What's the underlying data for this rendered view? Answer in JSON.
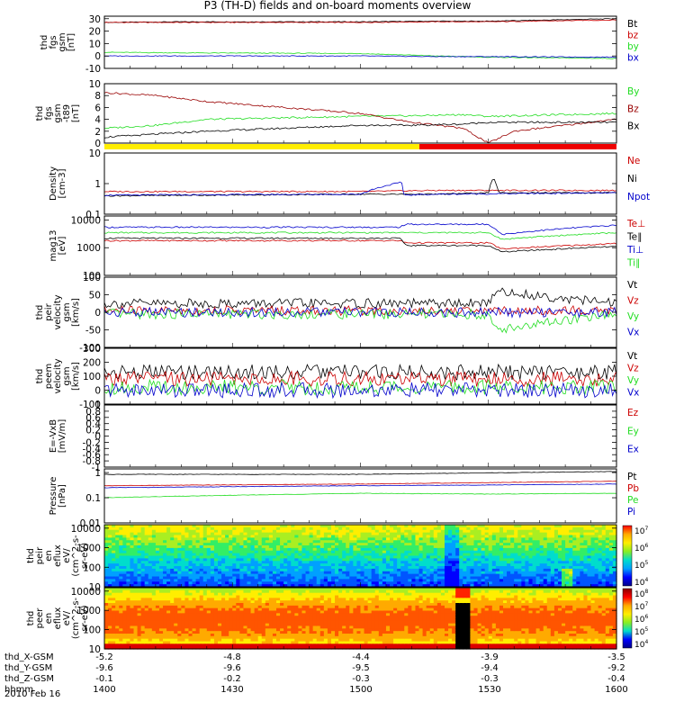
{
  "title": "P3 (TH-D) fields and on-board moments overview",
  "date_label": "2010 Feb 16",
  "colors": {
    "black": "#000000",
    "red": "#cc0000",
    "darkred": "#990000",
    "green": "#22dd22",
    "blue": "#0000cc"
  },
  "chart_data": [
    {
      "type": "line",
      "panel": "fgs_gsm",
      "ylabel": [
        "thd",
        "fgs",
        "gsm",
        "[nT]"
      ],
      "ylim": [
        -10,
        32
      ],
      "yticks": [
        -10,
        0,
        10,
        20,
        30
      ],
      "series": [
        {
          "name": "Bt",
          "color": "#000000",
          "x": [
            1400,
            1430,
            1500,
            1530,
            1550,
            1600
          ],
          "y": [
            27,
            27.5,
            27.5,
            28,
            28,
            30
          ]
        },
        {
          "name": "bz",
          "color": "#cc0000",
          "x": [
            1400,
            1430,
            1500,
            1530,
            1550,
            1600
          ],
          "y": [
            27,
            27,
            27,
            27.5,
            27.5,
            29
          ]
        },
        {
          "name": "by",
          "color": "#22dd22",
          "x": [
            1400,
            1430,
            1500,
            1530,
            1550,
            1600
          ],
          "y": [
            3,
            2.5,
            2,
            0,
            -1,
            -2
          ]
        },
        {
          "name": "bx",
          "color": "#0000cc",
          "x": [
            1400,
            1430,
            1500,
            1530,
            1550,
            1600
          ],
          "y": [
            0,
            0,
            0,
            -0.5,
            -0.5,
            -1
          ]
        }
      ]
    },
    {
      "type": "line",
      "panel": "fgs_t89",
      "ylabel": [
        "thd",
        "fgs",
        "gsm",
        "-t89",
        "[nT]"
      ],
      "ylim": [
        0,
        10
      ],
      "yticks": [
        0,
        2,
        4,
        6,
        8,
        10
      ],
      "series": [
        {
          "name": "By",
          "color": "#22dd22",
          "x": [
            1400,
            1420,
            1440,
            1500,
            1520,
            1540,
            1550,
            1600
          ],
          "y": [
            2.5,
            3,
            4,
            4.5,
            4.6,
            4.8,
            4.5,
            5
          ]
        },
        {
          "name": "Bz",
          "color": "#990000",
          "x": [
            1400,
            1420,
            1440,
            1500,
            1520,
            1540,
            1550,
            1560,
            1600
          ],
          "y": [
            8.5,
            8,
            7,
            5,
            3.5,
            2.5,
            0,
            2,
            4
          ]
        },
        {
          "name": "Bx",
          "color": "#000000",
          "x": [
            1400,
            1420,
            1440,
            1500,
            1520,
            1540,
            1550,
            1600
          ],
          "y": [
            1,
            1.5,
            2,
            3,
            3,
            3.2,
            3.5,
            3.5
          ]
        }
      ]
    },
    {
      "type": "bar",
      "panel": "state_bar",
      "segments": [
        {
          "from": 1400,
          "to": 1523,
          "color": "#ffee00"
        },
        {
          "from": 1523,
          "to": 1600,
          "color": "#ee0000"
        }
      ]
    },
    {
      "type": "line",
      "panel": "density",
      "yscale": "log",
      "ylabel": [
        "Density",
        "[cm-3]"
      ],
      "ylim": [
        0.1,
        10
      ],
      "yticks": [
        0.1,
        1.0,
        10.0
      ],
      "series": [
        {
          "name": "Ne",
          "color": "#cc0000",
          "x": [
            1400,
            1500,
            1530,
            1550,
            1600
          ],
          "y": [
            0.55,
            0.55,
            0.6,
            0.6,
            0.6
          ]
        },
        {
          "name": "Ni",
          "color": "#000000",
          "x": [
            1400,
            1500,
            1530,
            1550,
            1552,
            1554,
            1600
          ],
          "y": [
            0.4,
            0.45,
            0.45,
            0.5,
            1.5,
            0.5,
            0.5
          ]
        },
        {
          "name": "Npot",
          "color": "#0000cc",
          "x": [
            1400,
            1500,
            1516,
            1517,
            1530,
            1600
          ],
          "y": [
            0.42,
            0.45,
            1.1,
            0.42,
            0.45,
            0.5
          ]
        }
      ]
    },
    {
      "type": "line",
      "panel": "temperature",
      "yscale": "log",
      "ylabel": [
        "mag13",
        "[eV]"
      ],
      "ylim": [
        100,
        14000
      ],
      "yticks": [
        100,
        1000,
        10000
      ],
      "series": [
        {
          "name": "Te⊥",
          "color": "#cc0000",
          "x": [
            1400,
            1515,
            1518,
            1550,
            1555,
            1600
          ],
          "y": [
            1800,
            1800,
            1500,
            1500,
            900,
            1400
          ]
        },
        {
          "name": "Te∥",
          "color": "#000000",
          "x": [
            1400,
            1515,
            1518,
            1550,
            1555,
            1600
          ],
          "y": [
            2200,
            2200,
            1200,
            1200,
            700,
            1100
          ]
        },
        {
          "name": "Ti⊥",
          "color": "#0000cc",
          "x": [
            1400,
            1515,
            1518,
            1550,
            1555,
            1600
          ],
          "y": [
            5500,
            5500,
            7000,
            7000,
            3000,
            6500
          ]
        },
        {
          "name": "Ti∥",
          "color": "#22dd22",
          "x": [
            1400,
            1515,
            1518,
            1550,
            1555,
            1600
          ],
          "y": [
            3500,
            3500,
            3500,
            3500,
            2000,
            3500
          ]
        }
      ]
    },
    {
      "type": "line",
      "panel": "peir_velocity",
      "ylabel": [
        "thd",
        "peir",
        "velocity",
        "gsm",
        "[km/s]"
      ],
      "ylim": [
        -100,
        100
      ],
      "yticks": [
        -100,
        -50,
        0,
        50,
        100
      ],
      "series": [
        {
          "name": "Vt",
          "color": "#000000",
          "x": [
            1400,
            1500,
            1550,
            1552,
            1600
          ],
          "y": [
            25,
            25,
            25,
            60,
            25
          ]
        },
        {
          "name": "Vz",
          "color": "#cc0000",
          "x": [
            1400,
            1500,
            1600
          ],
          "y": [
            5,
            5,
            5
          ]
        },
        {
          "name": "Vy",
          "color": "#22dd22",
          "x": [
            1400,
            1500,
            1550,
            1552,
            1600
          ],
          "y": [
            -5,
            -5,
            -5,
            -50,
            -5
          ]
        },
        {
          "name": "Vx",
          "color": "#0000cc",
          "x": [
            1400,
            1500,
            1600
          ],
          "y": [
            0,
            0,
            0
          ]
        }
      ]
    },
    {
      "type": "line",
      "panel": "peem_velocity",
      "ylabel": [
        "thd",
        "peem",
        "velocity",
        "gsm",
        "[km/s]"
      ],
      "ylim": [
        -100,
        300
      ],
      "yticks": [
        -100,
        0,
        100,
        200,
        300
      ],
      "series": [
        {
          "name": "Vt",
          "color": "#000000",
          "x": [
            1400,
            1500,
            1600
          ],
          "y": [
            130,
            130,
            130
          ]
        },
        {
          "name": "Vz",
          "color": "#cc0000",
          "x": [
            1400,
            1500,
            1600
          ],
          "y": [
            80,
            80,
            80
          ]
        },
        {
          "name": "Vy",
          "color": "#22dd22",
          "x": [
            1400,
            1500,
            1600
          ],
          "y": [
            20,
            20,
            20
          ]
        },
        {
          "name": "Vx",
          "color": "#0000cc",
          "x": [
            1400,
            1500,
            1600
          ],
          "y": [
            0,
            0,
            0
          ]
        }
      ]
    },
    {
      "type": "line",
      "panel": "e_field",
      "ylabel": [
        "E=-VxB",
        "[mV/m]"
      ],
      "ylim": [
        -1.0,
        1.0
      ],
      "yticks": [
        -1.0,
        -0.8,
        -0.6,
        -0.4,
        -0.2,
        0.0,
        0.2,
        0.4,
        0.6,
        0.8,
        1.0
      ],
      "series": [
        {
          "name": "Ez",
          "color": "#cc0000",
          "x": [],
          "y": []
        },
        {
          "name": "Ey",
          "color": "#22dd22",
          "x": [],
          "y": []
        },
        {
          "name": "Ex",
          "color": "#0000cc",
          "x": [],
          "y": []
        }
      ]
    },
    {
      "type": "line",
      "panel": "pressure",
      "yscale": "log",
      "ylabel": [
        "Pressure",
        "[nPa]"
      ],
      "ylim": [
        0.01,
        1.4
      ],
      "yticks": [
        0.01,
        0.1,
        1.0
      ],
      "series": [
        {
          "name": "Pt",
          "color": "#000000",
          "x": [
            1400,
            1500,
            1600
          ],
          "y": [
            0.85,
            0.85,
            1.1
          ]
        },
        {
          "name": "Pb",
          "color": "#cc0000",
          "x": [
            1400,
            1500,
            1550,
            1600
          ],
          "y": [
            0.3,
            0.35,
            0.4,
            0.45
          ]
        },
        {
          "name": "Pe",
          "color": "#22dd22",
          "x": [
            1400,
            1500,
            1550,
            1600
          ],
          "y": [
            0.1,
            0.15,
            0.14,
            0.15
          ]
        },
        {
          "name": "Pi",
          "color": "#0000cc",
          "x": [
            1400,
            1500,
            1550,
            1600
          ],
          "y": [
            0.25,
            0.3,
            0.32,
            0.35
          ]
        }
      ]
    },
    {
      "type": "heatmap",
      "panel": "peir_spec",
      "yscale": "log",
      "ylabel": [
        "thd",
        "peir",
        "en",
        "eflux",
        "eV/",
        "(cm^2-s-",
        "sr-eV)"
      ],
      "ylim": [
        10,
        15000
      ],
      "yticks": [
        10,
        100,
        1000,
        10000
      ],
      "colorbar": {
        "ticks": [
          "10^4",
          "10^5",
          "10^6",
          "10^7"
        ]
      }
    },
    {
      "type": "heatmap",
      "panel": "peer_spec",
      "yscale": "log",
      "ylabel": [
        "thd",
        "peer",
        "en",
        "eflux",
        "eV/",
        "(cm^2-s-",
        "sr-eV)"
      ],
      "ylim": [
        10,
        15000
      ],
      "yticks": [
        10,
        100,
        1000,
        10000
      ],
      "colorbar": {
        "ticks": [
          "10^4",
          "10^5",
          "10^6",
          "10^7",
          "10^8"
        ]
      }
    }
  ],
  "x_axis": {
    "xlim": [
      1400,
      1600
    ],
    "rows": [
      {
        "label": "thd_X-GSM",
        "values": [
          "-5.2",
          "-4.8",
          "-4.4",
          "-3.9",
          "-3.5"
        ]
      },
      {
        "label": "thd_Y-GSM",
        "values": [
          "-9.6",
          "-9.6",
          "-9.5",
          "-9.4",
          "-9.2"
        ]
      },
      {
        "label": "thd_Z-GSM",
        "values": [
          "-0.1",
          "-0.2",
          "-0.3",
          "-0.3",
          "-0.4"
        ]
      },
      {
        "label": "hhmm",
        "values": [
          "1400",
          "1430",
          "1500",
          "1530",
          "1600"
        ]
      }
    ]
  }
}
